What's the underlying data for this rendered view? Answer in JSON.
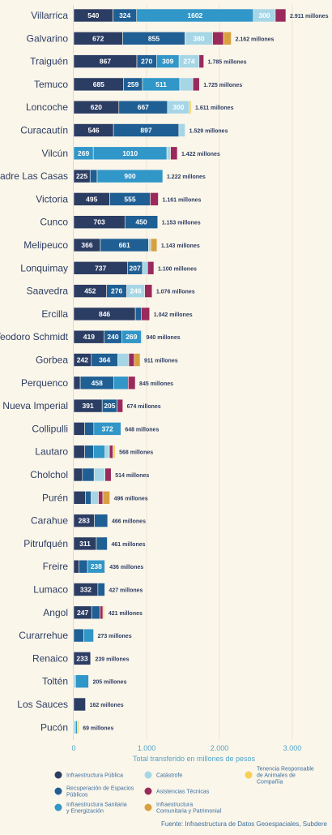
{
  "chart_data": {
    "type": "bar",
    "orientation": "horizontal",
    "stacked": true,
    "xlabel": "Total transferido en millones de pesos",
    "xlim": [
      0,
      3300
    ],
    "xticks": [
      0,
      1000,
      2000,
      3000
    ],
    "xtick_labels": [
      "0",
      "1.000",
      "2.000",
      "3.000"
    ],
    "grid": true,
    "legend_position": "bottom",
    "source": "Fuente: Infraestructura de Datos Geoespaciales, Subdere",
    "series": [
      {
        "name": "Infraestructura Pública",
        "color": "#2c3d63"
      },
      {
        "name": "Recuperación de Espacios Públicos",
        "color": "#1f5f94"
      },
      {
        "name": "Infraestructura Sanitaria y Energización",
        "color": "#3196c8"
      },
      {
        "name": "Catástrofe",
        "color": "#a6d6e6"
      },
      {
        "name": "Asistencias Técnicas",
        "color": "#9a2a5c"
      },
      {
        "name": "Infraestructura Comunitaria y Patrimonial",
        "color": "#d9a040"
      },
      {
        "name": "Tenencia Responsable de Animales de Compañía",
        "color": "#f6cf55"
      }
    ],
    "categories": [
      "Villarrica",
      "Galvarino",
      "Traiguén",
      "Temuco",
      "Loncoche",
      "Curacautín",
      "Vilcún",
      "Padre Las Casas",
      "Victoria",
      "Cunco",
      "Melipeuco",
      "Lonquimay",
      "Saavedra",
      "Ercilla",
      "Teodoro Schmidt",
      "Gorbea",
      "Perquenco",
      "Nueva Imperial",
      "Collipulli",
      "Lautaro",
      "Cholchol",
      "Purén",
      "Carahue",
      "Pitrufquén",
      "Freire",
      "Lumaco",
      "Angol",
      "Curarrehue",
      "Renaico",
      "Toltén",
      "Los Sauces",
      "Pucón"
    ],
    "totals": [
      "2.911 millones",
      "2.162 millones",
      "1.785 millones",
      "1.725 millones",
      "1.611 millones",
      "1.529 millones",
      "1.422 millones",
      "1.222 millones",
      "1.161 millones",
      "1.153 millones",
      "1.143 millones",
      "1.100 millones",
      "1.076 millones",
      "1.042 millones",
      "940 millones",
      "911 millones",
      "845 millones",
      "674 millones",
      "648 millones",
      "568 millones",
      "514 millones",
      "496 millones",
      "466 millones",
      "461 millones",
      "436 millones",
      "427 millones",
      "421 millones",
      "273 millones",
      "239 millones",
      "205 millones",
      "162 millones",
      "69 millones"
    ],
    "segments": [
      [
        [
          0,
          540,
          "540"
        ],
        [
          1,
          324,
          "324"
        ],
        [
          2,
          1602,
          "1602"
        ],
        [
          3,
          300,
          "300"
        ],
        [
          4,
          145,
          ""
        ]
      ],
      [
        [
          0,
          672,
          "672"
        ],
        [
          1,
          855,
          "855"
        ],
        [
          3,
          380,
          "380"
        ],
        [
          4,
          150,
          ""
        ],
        [
          5,
          105,
          ""
        ]
      ],
      [
        [
          0,
          867,
          "867"
        ],
        [
          1,
          270,
          "270"
        ],
        [
          2,
          309,
          "309"
        ],
        [
          3,
          274,
          "274"
        ],
        [
          4,
          65,
          ""
        ]
      ],
      [
        [
          0,
          685,
          "685"
        ],
        [
          1,
          259,
          "259"
        ],
        [
          2,
          511,
          "511"
        ],
        [
          3,
          180,
          ""
        ],
        [
          4,
          90,
          ""
        ]
      ],
      [
        [
          0,
          620,
          "620"
        ],
        [
          1,
          667,
          "667"
        ],
        [
          3,
          300,
          "300"
        ],
        [
          6,
          24,
          ""
        ]
      ],
      [
        [
          0,
          546,
          "546"
        ],
        [
          1,
          897,
          "897"
        ],
        [
          3,
          86,
          ""
        ]
      ],
      [
        [
          2,
          269,
          "269"
        ],
        [
          2,
          1010,
          "1010"
        ],
        [
          3,
          50,
          ""
        ],
        [
          4,
          93,
          ""
        ]
      ],
      [
        [
          0,
          225,
          "225"
        ],
        [
          1,
          97,
          ""
        ],
        [
          2,
          900,
          "900"
        ]
      ],
      [
        [
          0,
          495,
          "495"
        ],
        [
          1,
          555,
          "555"
        ],
        [
          4,
          111,
          ""
        ]
      ],
      [
        [
          0,
          703,
          "703"
        ],
        [
          1,
          450,
          "450"
        ]
      ],
      [
        [
          0,
          366,
          "366"
        ],
        [
          1,
          661,
          "661"
        ],
        [
          3,
          30,
          ""
        ],
        [
          5,
          86,
          ""
        ]
      ],
      [
        [
          0,
          737,
          "737"
        ],
        [
          1,
          207,
          "207"
        ],
        [
          3,
          70,
          ""
        ],
        [
          4,
          86,
          ""
        ]
      ],
      [
        [
          0,
          452,
          "452"
        ],
        [
          1,
          276,
          "276"
        ],
        [
          3,
          246,
          "246"
        ],
        [
          4,
          102,
          ""
        ]
      ],
      [
        [
          0,
          846,
          "846"
        ],
        [
          1,
          80,
          ""
        ],
        [
          4,
          116,
          ""
        ]
      ],
      [
        [
          0,
          419,
          "419"
        ],
        [
          1,
          240,
          "240"
        ],
        [
          2,
          269,
          "269"
        ],
        [
          3,
          12,
          ""
        ]
      ],
      [
        [
          0,
          242,
          "242"
        ],
        [
          1,
          364,
          "364"
        ],
        [
          3,
          150,
          ""
        ],
        [
          4,
          75,
          ""
        ],
        [
          5,
          80,
          ""
        ]
      ],
      [
        [
          0,
          90,
          ""
        ],
        [
          1,
          458,
          "458"
        ],
        [
          2,
          200,
          ""
        ],
        [
          4,
          97,
          ""
        ]
      ],
      [
        [
          0,
          391,
          "391"
        ],
        [
          1,
          205,
          "205"
        ],
        [
          4,
          78,
          ""
        ]
      ],
      [
        [
          0,
          150,
          ""
        ],
        [
          1,
          126,
          ""
        ],
        [
          2,
          372,
          "372"
        ]
      ],
      [
        [
          0,
          150,
          ""
        ],
        [
          1,
          120,
          ""
        ],
        [
          2,
          160,
          ""
        ],
        [
          3,
          60,
          ""
        ],
        [
          4,
          50,
          ""
        ],
        [
          6,
          28,
          ""
        ]
      ],
      [
        [
          0,
          120,
          ""
        ],
        [
          1,
          160,
          ""
        ],
        [
          3,
          150,
          ""
        ],
        [
          4,
          84,
          ""
        ]
      ],
      [
        [
          0,
          160,
          ""
        ],
        [
          1,
          80,
          ""
        ],
        [
          3,
          100,
          ""
        ],
        [
          4,
          60,
          ""
        ],
        [
          5,
          96,
          ""
        ]
      ],
      [
        [
          0,
          283,
          "283"
        ],
        [
          1,
          183,
          ""
        ]
      ],
      [
        [
          0,
          311,
          "311"
        ],
        [
          1,
          150,
          ""
        ]
      ],
      [
        [
          0,
          70,
          ""
        ],
        [
          1,
          120,
          ""
        ],
        [
          2,
          238,
          "238"
        ],
        [
          6,
          8,
          ""
        ]
      ],
      [
        [
          0,
          332,
          "332"
        ],
        [
          1,
          95,
          ""
        ]
      ],
      [
        [
          0,
          247,
          "247"
        ],
        [
          1,
          114,
          ""
        ],
        [
          4,
          40,
          ""
        ],
        [
          6,
          20,
          ""
        ]
      ],
      [
        [
          1,
          140,
          ""
        ],
        [
          2,
          133,
          ""
        ]
      ],
      [
        [
          0,
          233,
          "233"
        ],
        [
          1,
          6,
          ""
        ]
      ],
      [
        [
          3,
          25,
          ""
        ],
        [
          2,
          180,
          ""
        ]
      ],
      [
        [
          0,
          162,
          ""
        ]
      ],
      [
        [
          3,
          25,
          ""
        ],
        [
          2,
          24,
          ""
        ],
        [
          6,
          20,
          ""
        ]
      ]
    ]
  }
}
